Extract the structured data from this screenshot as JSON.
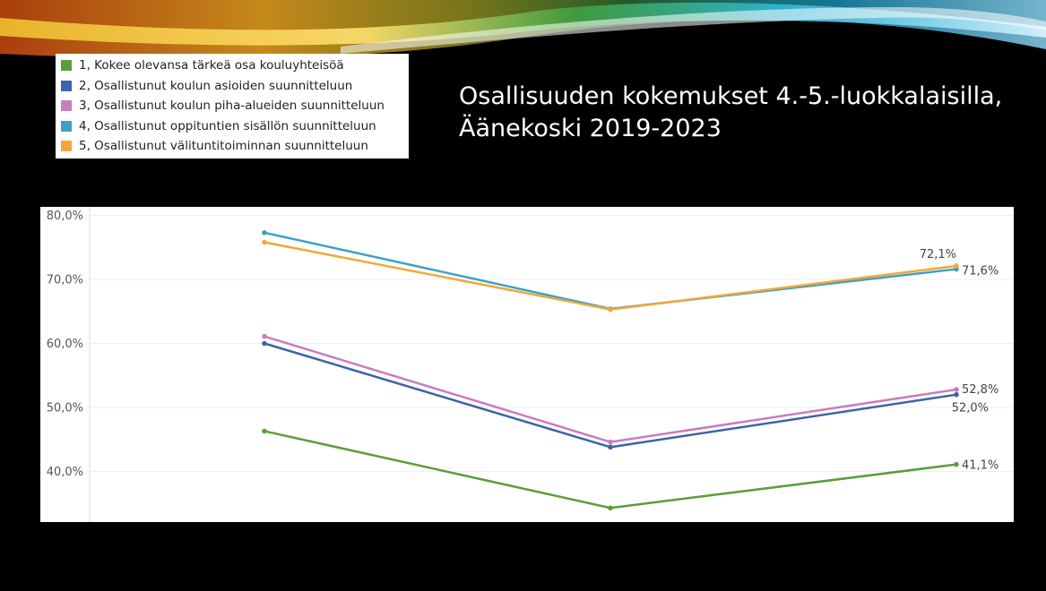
{
  "title_lines": [
    "Osallisuuden kokemukset 4.-5.-luokkalaisilla,",
    "Äänekoski 2019-2023"
  ],
  "chart_data": {
    "type": "line",
    "categories": [
      "",
      "",
      ""
    ],
    "ylim": [
      30,
      80
    ],
    "yticks": [
      40,
      50,
      60,
      70,
      80
    ],
    "ytick_labels": [
      "40,0%",
      "50,0%",
      "60,0%",
      "70,0%",
      "80,0%"
    ],
    "grid": true,
    "legend_position": "top-left",
    "series": [
      {
        "name": "1, Kokee olevansa tärkeä osa kouluyhteisöä",
        "color": "#5a9e3a",
        "values": [
          46.3,
          34.3,
          41.1
        ],
        "end_label": "41,1%"
      },
      {
        "name": "2, Osallistunut koulun asioiden suunnitteluun",
        "color": "#3e63a8",
        "values": [
          60.0,
          43.8,
          52.0
        ],
        "end_label": "52,0%"
      },
      {
        "name": "3, Osallistunut koulun piha-alueiden suunnitteluun",
        "color": "#c87dbd",
        "values": [
          61.1,
          44.6,
          52.8
        ],
        "end_label": "52,8%"
      },
      {
        "name": "4, Osallistunut oppituntien sisällön suunnitteluun",
        "color": "#3aa1c4",
        "values": [
          77.3,
          65.4,
          71.6
        ],
        "end_label": "71,6%"
      },
      {
        "name": "5, Osallistunut välituntitoiminnan suunnitteluun",
        "color": "#f2a73a",
        "values": [
          75.8,
          65.3,
          72.1
        ],
        "end_label": "72,1%"
      }
    ]
  }
}
